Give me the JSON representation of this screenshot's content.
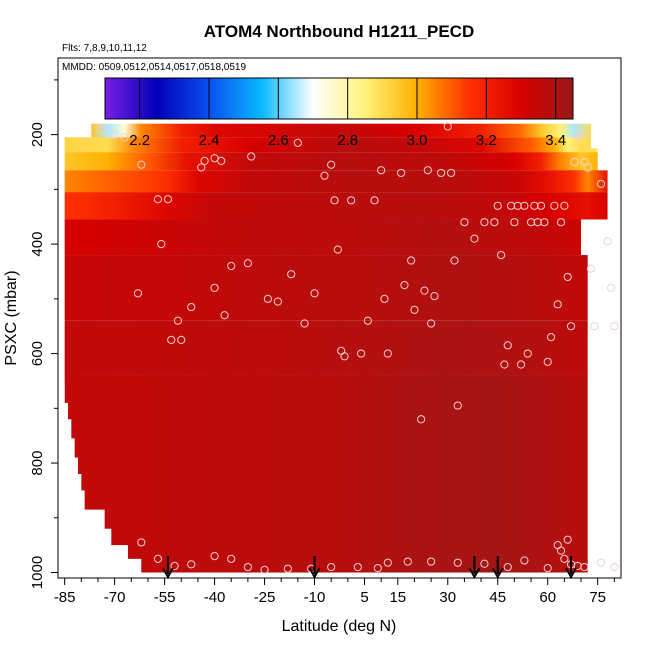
{
  "chart_data": {
    "type": "heatmap",
    "title": "ATOM4 Northbound H1211_PECD",
    "subtitle_flights": "Flts: 7,8,9,10,11,12",
    "subtitle_dates": "MMDD: 0509,0512,0514,0517,0518,0519",
    "xlabel": "Latitude (deg N)",
    "ylabel": "PSXC (mbar)",
    "xlim": [
      -87,
      82
    ],
    "ylim": [
      1010,
      60
    ],
    "x_ticks": [
      -85,
      -70,
      -55,
      -40,
      -25,
      -10,
      5,
      15,
      30,
      45,
      60,
      75
    ],
    "x_tick_labels": [
      "-85",
      "-70",
      "-55",
      "-40",
      "-25",
      "-10",
      "5",
      "15",
      "30",
      "45",
      "60",
      "75"
    ],
    "y_ticks": [
      200,
      400,
      600,
      800,
      1000
    ],
    "y_tick_labels": [
      "200",
      "400",
      "600",
      "800",
      "1000"
    ],
    "colorbar": {
      "min": 2.1,
      "max": 3.45,
      "ticks": [
        2.2,
        2.4,
        2.6,
        2.8,
        3.0,
        3.2,
        3.4
      ],
      "tick_labels": [
        "2.2",
        "2.4",
        "2.6",
        "2.8",
        "3.0",
        "3.2",
        "3.4"
      ],
      "colors": [
        "#7a1fe6",
        "#0000b8",
        "#0a4ff0",
        "#08b8ff",
        "#ffffff",
        "#fff27a",
        "#ffb000",
        "#ff3000",
        "#d80000",
        "#9a1a1a"
      ]
    },
    "profile_latitudes": [
      -54,
      -10,
      38,
      45,
      67
    ],
    "pressure_layers": [
      {
        "p": [
          180,
          205
        ],
        "segments": [
          [
            -77,
            2.95
          ],
          [
            -72,
            2.65
          ],
          [
            -67,
            2.75
          ],
          [
            -62,
            3.05
          ],
          [
            -50,
            3.2
          ],
          [
            -40,
            3.28
          ],
          [
            0,
            3.35
          ],
          [
            20,
            3.3
          ],
          [
            40,
            3.2
          ],
          [
            52,
            3.08
          ],
          [
            58,
            2.95
          ],
          [
            64,
            2.85
          ],
          [
            68,
            2.65
          ],
          [
            73,
            2.9
          ]
        ]
      },
      {
        "p": [
          205,
          232
        ],
        "segments": [
          [
            -85,
            2.92
          ],
          [
            -72,
            2.9
          ],
          [
            -64,
            3.05
          ],
          [
            -50,
            3.2
          ],
          [
            -30,
            3.3
          ],
          [
            0,
            3.38
          ],
          [
            20,
            3.35
          ],
          [
            40,
            3.28
          ],
          [
            55,
            3.1
          ],
          [
            62,
            3.0
          ],
          [
            66,
            2.85
          ],
          [
            70,
            2.9
          ],
          [
            75,
            2.9
          ]
        ]
      },
      {
        "p": [
          232,
          265
        ],
        "segments": [
          [
            -85,
            2.95
          ],
          [
            -72,
            3.0
          ],
          [
            -60,
            3.1
          ],
          [
            -48,
            3.25
          ],
          [
            -30,
            3.35
          ],
          [
            0,
            3.38
          ],
          [
            30,
            3.36
          ],
          [
            50,
            3.3
          ],
          [
            58,
            3.2
          ],
          [
            64,
            3.05
          ],
          [
            70,
            2.95
          ],
          [
            76,
            3.0
          ]
        ]
      },
      {
        "p": [
          265,
          305
        ],
        "segments": [
          [
            -85,
            3.05
          ],
          [
            -70,
            3.1
          ],
          [
            -55,
            3.15
          ],
          [
            -45,
            3.28
          ],
          [
            -30,
            3.35
          ],
          [
            0,
            3.38
          ],
          [
            30,
            3.38
          ],
          [
            52,
            3.33
          ],
          [
            60,
            3.25
          ],
          [
            68,
            3.15
          ],
          [
            72,
            3.05
          ],
          [
            78,
            3.25
          ]
        ]
      },
      {
        "p": [
          305,
          355
        ],
        "segments": [
          [
            -85,
            3.15
          ],
          [
            -70,
            3.2
          ],
          [
            -55,
            3.28
          ],
          [
            -40,
            3.35
          ],
          [
            -10,
            3.37
          ],
          [
            20,
            3.38
          ],
          [
            45,
            3.36
          ],
          [
            60,
            3.3
          ],
          [
            72,
            3.25
          ],
          [
            78,
            3.3
          ]
        ]
      },
      {
        "p": [
          355,
          420
        ],
        "segments": [
          [
            -85,
            3.3
          ],
          [
            -60,
            3.33
          ],
          [
            -30,
            3.36
          ],
          [
            0,
            3.37
          ],
          [
            30,
            3.39
          ],
          [
            55,
            3.36
          ],
          [
            70,
            3.33
          ]
        ]
      },
      {
        "p": [
          420,
          540
        ],
        "segments": [
          [
            -85,
            3.34
          ],
          [
            -50,
            3.35
          ],
          [
            -20,
            3.37
          ],
          [
            10,
            3.38
          ],
          [
            30,
            3.4
          ],
          [
            55,
            3.38
          ],
          [
            72,
            3.35
          ]
        ]
      },
      {
        "p": [
          540,
          640
        ],
        "segments": [
          [
            -85,
            3.35
          ],
          [
            -50,
            3.36
          ],
          [
            -20,
            3.37
          ],
          [
            10,
            3.39
          ],
          [
            30,
            3.41
          ],
          [
            55,
            3.39
          ],
          [
            72,
            3.36
          ]
        ]
      },
      {
        "p": [
          640,
          1000
        ],
        "segments": [
          [
            -85,
            3.35
          ],
          [
            -55,
            3.36
          ],
          [
            -30,
            3.37
          ],
          [
            0,
            3.38
          ],
          [
            20,
            3.41
          ],
          [
            45,
            3.42
          ],
          [
            60,
            3.4
          ],
          [
            72,
            3.37
          ]
        ]
      }
    ],
    "low_boundary": [
      [
        655,
        -85
      ],
      [
        690,
        -84
      ],
      [
        720,
        -83
      ],
      [
        755,
        -82
      ],
      [
        790,
        -81
      ],
      [
        820,
        -80
      ],
      [
        850,
        -79
      ],
      [
        885,
        -73
      ],
      [
        920,
        -71
      ],
      [
        950,
        -66
      ],
      [
        975,
        -62
      ],
      [
        1000,
        -57
      ],
      [
        1010,
        -54
      ]
    ],
    "right_boundary": [
      [
        180,
        73
      ],
      [
        225,
        75
      ],
      [
        265,
        78
      ],
      [
        1010,
        80
      ]
    ],
    "sample_points": [
      [
        -74,
        190
      ],
      [
        -70,
        200
      ],
      [
        -67,
        205
      ],
      [
        -62,
        255
      ],
      [
        -57,
        318
      ],
      [
        -54,
        318
      ],
      [
        -56,
        400
      ],
      [
        -63,
        490
      ],
      [
        -51,
        540
      ],
      [
        -53,
        575
      ],
      [
        -50,
        575
      ],
      [
        -47,
        515
      ],
      [
        -43,
        248
      ],
      [
        -44,
        260
      ],
      [
        -40,
        243
      ],
      [
        -38,
        248
      ],
      [
        -40,
        480
      ],
      [
        -37,
        530
      ],
      [
        -35,
        440
      ],
      [
        -29,
        240
      ],
      [
        -30,
        435
      ],
      [
        -24,
        500
      ],
      [
        -21,
        505
      ],
      [
        -17,
        455
      ],
      [
        -15,
        215
      ],
      [
        -13,
        545
      ],
      [
        -10,
        490
      ],
      [
        -7,
        275
      ],
      [
        -5,
        255
      ],
      [
        -4,
        320
      ],
      [
        -3,
        410
      ],
      [
        -2,
        595
      ],
      [
        -1,
        605
      ],
      [
        1,
        320
      ],
      [
        4,
        600
      ],
      [
        6,
        540
      ],
      [
        8,
        320
      ],
      [
        10,
        265
      ],
      [
        11,
        500
      ],
      [
        12,
        600
      ],
      [
        16,
        270
      ],
      [
        17,
        475
      ],
      [
        19,
        430
      ],
      [
        20,
        520
      ],
      [
        22,
        720
      ],
      [
        23,
        485
      ],
      [
        24,
        265
      ],
      [
        25,
        545
      ],
      [
        26,
        495
      ],
      [
        28,
        270
      ],
      [
        30,
        185
      ],
      [
        31,
        270
      ],
      [
        32,
        430
      ],
      [
        33,
        695
      ],
      [
        35,
        360
      ],
      [
        38,
        390
      ],
      [
        41,
        360
      ],
      [
        44,
        360
      ],
      [
        45,
        330
      ],
      [
        46,
        420
      ],
      [
        47,
        620
      ],
      [
        48,
        585
      ],
      [
        49,
        330
      ],
      [
        50,
        360
      ],
      [
        51,
        330
      ],
      [
        52,
        620
      ],
      [
        53,
        330
      ],
      [
        54,
        600
      ],
      [
        55,
        360
      ],
      [
        56,
        330
      ],
      [
        57,
        360
      ],
      [
        58,
        330
      ],
      [
        59,
        360
      ],
      [
        60,
        615
      ],
      [
        61,
        570
      ],
      [
        62,
        330
      ],
      [
        63,
        510
      ],
      [
        64,
        360
      ],
      [
        65,
        330
      ],
      [
        66,
        460
      ],
      [
        67,
        550
      ],
      [
        68,
        250
      ],
      [
        69,
        205
      ],
      [
        70,
        200
      ],
      [
        71,
        250
      ],
      [
        72,
        260
      ],
      [
        73,
        445
      ],
      [
        74,
        550
      ],
      [
        76,
        290
      ],
      [
        78,
        395
      ],
      [
        79,
        480
      ],
      [
        80,
        550
      ],
      [
        -62,
        945
      ],
      [
        -57,
        975
      ],
      [
        -52,
        988
      ],
      [
        -47,
        985
      ],
      [
        -40,
        970
      ],
      [
        -35,
        975
      ],
      [
        -30,
        990
      ],
      [
        -25,
        995
      ],
      [
        -18,
        993
      ],
      [
        -11,
        993
      ],
      [
        -5,
        990
      ],
      [
        3,
        990
      ],
      [
        9,
        992
      ],
      [
        12,
        982
      ],
      [
        18,
        980
      ],
      [
        25,
        980
      ],
      [
        33,
        982
      ],
      [
        41,
        984
      ],
      [
        48,
        990
      ],
      [
        53,
        978
      ],
      [
        60,
        992
      ],
      [
        63,
        950
      ],
      [
        64,
        960
      ],
      [
        65,
        975
      ],
      [
        66,
        940
      ],
      [
        67,
        985
      ],
      [
        69,
        988
      ],
      [
        71,
        990
      ],
      [
        76,
        982
      ],
      [
        80,
        990
      ]
    ]
  }
}
